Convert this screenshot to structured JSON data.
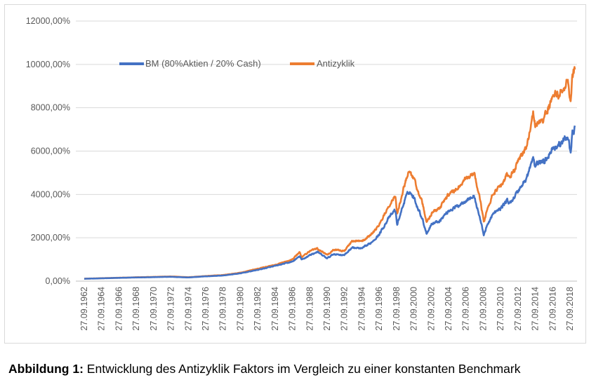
{
  "chart_data": {
    "type": "line",
    "title": "",
    "xlabel": "",
    "ylabel": "",
    "ylim": [
      0,
      12000
    ],
    "y_ticks": [
      0,
      2000,
      4000,
      6000,
      8000,
      10000,
      12000
    ],
    "y_tick_labels": [
      "0,00%",
      "2000,00%",
      "4000,00%",
      "6000,00%",
      "8000,00%",
      "10000,00%",
      "12000,00%"
    ],
    "x_tick_labels": [
      "27.09.1962",
      "27.09.1964",
      "27.09.1966",
      "27.09.1968",
      "27.09.1970",
      "27.09.1972",
      "27.09.1974",
      "27.09.1976",
      "27.09.1978",
      "27.09.1980",
      "27.09.1982",
      "27.09.1984",
      "27.09.1986",
      "27.09.1988",
      "27.09.1990",
      "27.09.1992",
      "27.09.1994",
      "27.09.1996",
      "27.09.1998",
      "27.09.2000",
      "27.09.2002",
      "27.09.2004",
      "27.09.2006",
      "27.09.2008",
      "27.09.2010",
      "27.09.2012",
      "27.09.2014",
      "27.09.2016",
      "27.09.2018"
    ],
    "xlim": [
      1962.74,
      2019.3
    ],
    "grid": true,
    "legend_position": "top-left",
    "series": [
      {
        "name": "BM (80%Aktien / 20% Cash)",
        "color": "#4472C4",
        "x": [
          1962.74,
          1964.74,
          1966.74,
          1968.74,
          1970.74,
          1972.74,
          1974.74,
          1976.74,
          1978.74,
          1980.74,
          1982.74,
          1984.74,
          1986.74,
          1987.6,
          1987.8,
          1988.74,
          1989.6,
          1990.74,
          1991.5,
          1992.74,
          1993.6,
          1994.74,
          1995.74,
          1996.74,
          1997.74,
          1998.6,
          1998.8,
          1999.74,
          2000.2,
          2000.74,
          2001.7,
          2002.2,
          2002.8,
          2003.74,
          2004.74,
          2005.74,
          2006.74,
          2007.7,
          2008.3,
          2008.8,
          2009.2,
          2009.74,
          2010.74,
          2011.5,
          2011.74,
          2012.74,
          2013.74,
          2014.5,
          2014.74,
          2015.2,
          2015.74,
          2016.2,
          2016.74,
          2017.74,
          2018.5,
          2018.8,
          2019.0,
          2019.3
        ],
        "values": [
          110,
          130,
          150,
          170,
          185,
          200,
          170,
          220,
          260,
          360,
          520,
          700,
          900,
          1150,
          980,
          1200,
          1350,
          1050,
          1250,
          1200,
          1550,
          1500,
          1750,
          2150,
          2850,
          3300,
          2600,
          3800,
          4150,
          3850,
          2900,
          2200,
          2650,
          2800,
          3250,
          3450,
          3750,
          3900,
          3000,
          2150,
          2550,
          3050,
          3350,
          3750,
          3550,
          4150,
          4750,
          5700,
          5250,
          5550,
          5500,
          5800,
          6150,
          6350,
          6700,
          5950,
          6800,
          7050
        ]
      },
      {
        "name": "Antizyklik",
        "color": "#ED7D31",
        "x": [
          1962.74,
          1964.74,
          1966.74,
          1968.74,
          1970.74,
          1972.74,
          1974.74,
          1976.74,
          1978.74,
          1980.74,
          1982.74,
          1984.74,
          1986.74,
          1987.6,
          1987.8,
          1988.74,
          1989.6,
          1990.74,
          1991.5,
          1992.74,
          1993.6,
          1994.74,
          1995.74,
          1996.74,
          1997.74,
          1998.6,
          1998.8,
          1999.74,
          2000.2,
          2000.74,
          2001.7,
          2002.2,
          2002.8,
          2003.74,
          2004.74,
          2005.74,
          2006.74,
          2007.7,
          2008.3,
          2008.8,
          2009.2,
          2009.74,
          2010.74,
          2011.5,
          2011.74,
          2012.74,
          2013.74,
          2014.5,
          2014.74,
          2015.2,
          2015.74,
          2016.2,
          2016.74,
          2017.74,
          2018.5,
          2018.8,
          2019.0,
          2019.3
        ],
        "values": [
          115,
          135,
          155,
          178,
          195,
          215,
          180,
          235,
          280,
          390,
          570,
          760,
          1000,
          1350,
          1100,
          1380,
          1500,
          1200,
          1450,
          1400,
          1850,
          1850,
          2100,
          2600,
          3400,
          3900,
          3100,
          4550,
          5150,
          4700,
          3650,
          2700,
          3150,
          3400,
          4000,
          4300,
          4750,
          4950,
          3900,
          2750,
          3250,
          3950,
          4350,
          4950,
          4700,
          5500,
          6200,
          7900,
          7150,
          7550,
          7450,
          7950,
          8450,
          8750,
          9350,
          8150,
          9400,
          9850
        ]
      }
    ]
  },
  "caption": {
    "label": "Abbildung 1:",
    "text": " Entwicklung des Antizyklik Faktors im Vergleich zu einer konstanten Benchmark"
  }
}
